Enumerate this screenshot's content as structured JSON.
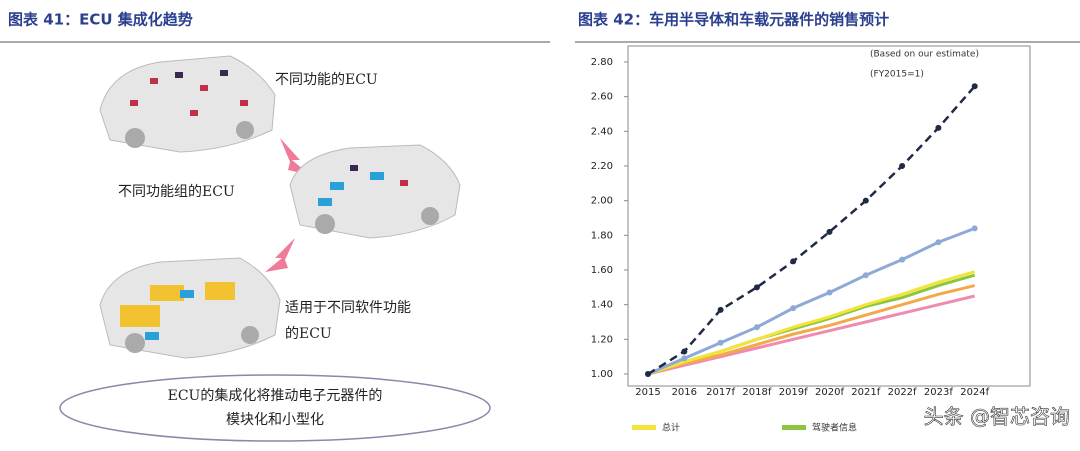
{
  "left": {
    "title": "图表 41：ECU 集成化趋势",
    "labels": [
      "不同功能的ECU",
      "不同功能组的ECU",
      "适用于不同软件功能",
      "的ECU"
    ],
    "caption": [
      "ECU的集成化将推动电子元器件的",
      "模块化和小型化"
    ]
  },
  "chart_data": {
    "type": "line",
    "title": "图表 42：车用半导体和车载元器件的销售预计",
    "annotations": [
      "(Based on our estimate)",
      "(FY2015=1)"
    ],
    "categories": [
      "2015",
      "2016",
      "2017f",
      "2018f",
      "2019f",
      "2020f",
      "2021f",
      "2022f",
      "2023f",
      "2024f"
    ],
    "ylim": [
      1,
      2.8
    ],
    "yticks": [
      {
        "value": 1,
        "label": "1.00"
      },
      {
        "value": 1.2,
        "label": "1.20"
      },
      {
        "value": 1.4,
        "label": "1.40"
      },
      {
        "value": 1.6,
        "label": "1.60"
      },
      {
        "value": 1.8,
        "label": "1.80"
      },
      {
        "value": 2,
        "label": "2.00"
      },
      {
        "value": 2.2,
        "label": "2.20"
      },
      {
        "value": 2.4,
        "label": "2.40"
      },
      {
        "value": 2.6,
        "label": "2.60"
      },
      {
        "value": 2.8,
        "label": "2.80"
      }
    ],
    "grid": false,
    "series": [
      {
        "color": "#1f2a44",
        "dash": true,
        "marker": true,
        "values": [
          1.0,
          1.13,
          1.37,
          1.5,
          1.65,
          1.82,
          2.0,
          2.2,
          2.42,
          2.66
        ]
      },
      {
        "color": "#8fa9d6",
        "marker": true,
        "values": [
          1.0,
          1.09,
          1.18,
          1.27,
          1.38,
          1.47,
          1.57,
          1.66,
          1.76,
          1.84
        ]
      },
      {
        "name": "总计",
        "color": "#f2e43a",
        "values": [
          1.0,
          1.07,
          1.13,
          1.2,
          1.27,
          1.33,
          1.4,
          1.46,
          1.53,
          1.59
        ]
      },
      {
        "name": "驾驶者信息",
        "color": "#8cc63f",
        "values": [
          1.0,
          1.07,
          1.13,
          1.2,
          1.26,
          1.32,
          1.39,
          1.44,
          1.51,
          1.57
        ]
      },
      {
        "color": "#f5a84a",
        "values": [
          1.0,
          1.06,
          1.11,
          1.17,
          1.23,
          1.28,
          1.34,
          1.4,
          1.46,
          1.51
        ]
      },
      {
        "color": "#f08bb0",
        "values": [
          1.0,
          1.05,
          1.1,
          1.15,
          1.2,
          1.25,
          1.3,
          1.35,
          1.4,
          1.45
        ]
      }
    ]
  },
  "watermark": "头条 @智芯咨询"
}
